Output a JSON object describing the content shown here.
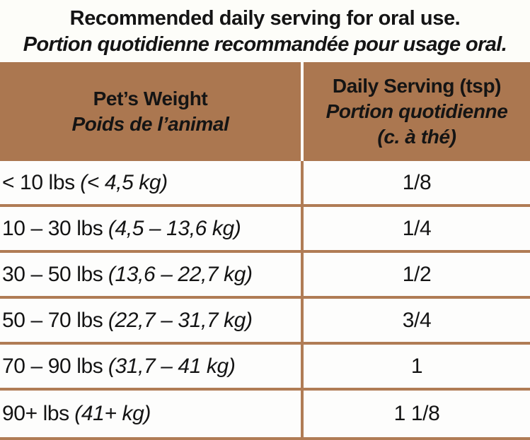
{
  "colors": {
    "page_bg": "#fdfdf9",
    "header_bg": "#ab7750",
    "grid_line": "#b07c55",
    "divider_white": "#fdfdf9",
    "text": "#141414",
    "cell_bg": "#fdfdfc"
  },
  "title": {
    "line1": "Recommended daily serving for oral use.",
    "line2": "Portion quotidienne recommandée pour usage oral."
  },
  "table": {
    "header": {
      "col1_en": "Pet’s Weight",
      "col1_fr": "Poids de l’animal",
      "col2_en": "Daily Serving (tsp)",
      "col2_fr_line1": "Portion quotidienne",
      "col2_fr_line2": "(c. à thé)"
    },
    "rows": [
      {
        "weight_lbs": "< 10 lbs",
        "weight_kg": "(< 4,5 kg)",
        "serving": "1/8"
      },
      {
        "weight_lbs": "10 – 30 lbs",
        "weight_kg": "(4,5 – 13,6 kg)",
        "serving": "1/4"
      },
      {
        "weight_lbs": "30 – 50 lbs",
        "weight_kg": "(13,6 – 22,7 kg)",
        "serving": "1/2"
      },
      {
        "weight_lbs": "50 – 70 lbs",
        "weight_kg": "(22,7 – 31,7 kg)",
        "serving": "3/4"
      },
      {
        "weight_lbs": "70 – 90 lbs",
        "weight_kg": "(31,7 – 41 kg)",
        "serving": "1"
      },
      {
        "weight_lbs": "90+ lbs",
        "weight_kg": "(41+ kg)",
        "serving": "1 1/8"
      }
    ]
  }
}
